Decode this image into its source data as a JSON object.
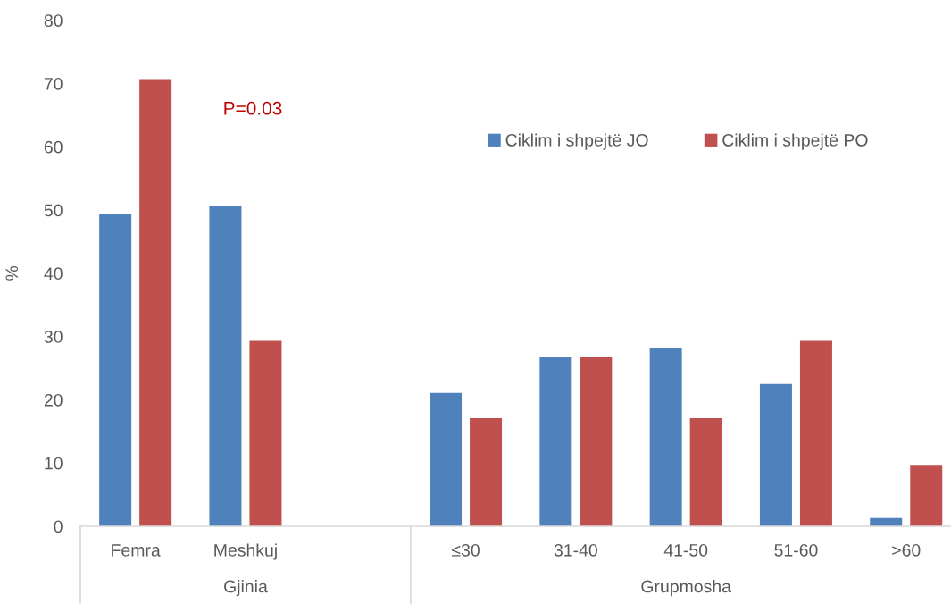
{
  "chart_data": {
    "type": "bar",
    "ylabel": "%",
    "categories": [
      "Femra",
      "Meshkuj",
      null,
      "≤30",
      "31-40",
      "41-50",
      "51-60",
      ">60"
    ],
    "series": [
      {
        "name": "Ciklim i shpejtë JO",
        "color": "#4f81bd",
        "values": [
          49.4,
          50.6,
          null,
          21.1,
          26.8,
          28.2,
          22.5,
          1.3
        ]
      },
      {
        "name": "Ciklim i shpejtë PO",
        "color": "#c0504d",
        "values": [
          70.7,
          29.3,
          null,
          17.1,
          26.8,
          17.1,
          29.3,
          9.7
        ]
      }
    ],
    "ylim": [
      0,
      80
    ],
    "yticks": [
      0,
      10,
      20,
      30,
      40,
      50,
      60,
      70,
      80
    ],
    "legend": "top right",
    "annotations": [
      "P=0.03",
      "Gjinia",
      "Grupmosha"
    ]
  }
}
